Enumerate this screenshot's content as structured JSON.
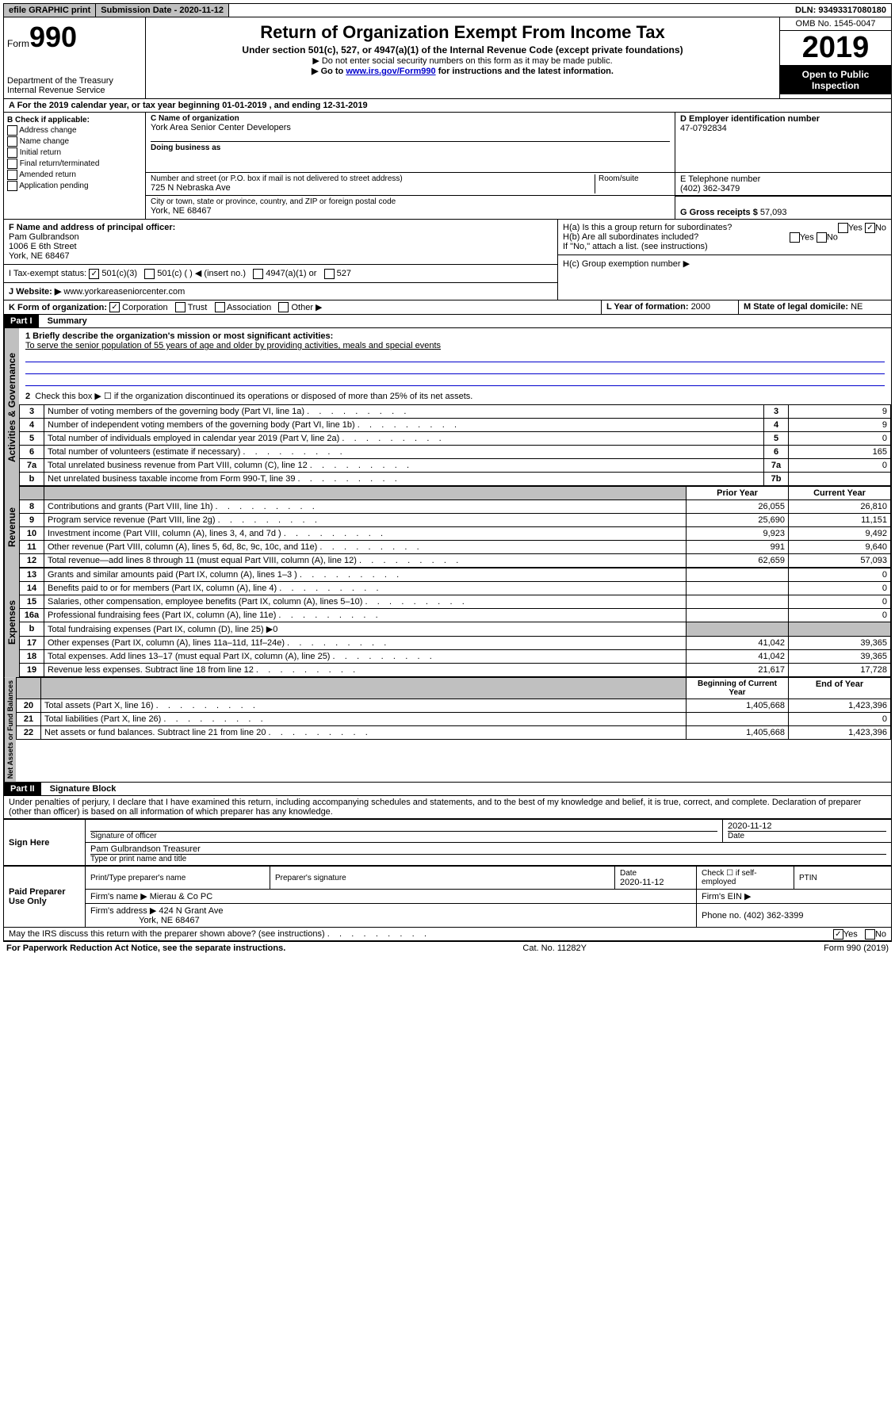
{
  "topbar": {
    "efile": "efile GRAPHIC print",
    "submission_label": "Submission Date - ",
    "submission_date": "2020-11-12",
    "dln_label": "DLN: ",
    "dln": "93493317080180"
  },
  "header": {
    "form_label": "Form",
    "form_number": "990",
    "dept": "Department of the Treasury\nInternal Revenue Service",
    "title": "Return of Organization Exempt From Income Tax",
    "subtitle": "Under section 501(c), 527, or 4947(a)(1) of the Internal Revenue Code (except private foundations)",
    "note1": "▶ Do not enter social security numbers on this form as it may be made public.",
    "note2_pre": "▶ Go to ",
    "note2_link": "www.irs.gov/Form990",
    "note2_post": " for instructions and the latest information.",
    "omb": "OMB No. 1545-0047",
    "year": "2019",
    "inspect": "Open to Public Inspection"
  },
  "rowA": "A For the 2019 calendar year, or tax year beginning 01-01-2019   , and ending 12-31-2019",
  "boxB": {
    "label": "B Check if applicable:",
    "items": [
      "Address change",
      "Name change",
      "Initial return",
      "Final return/terminated",
      "Amended return",
      "Application pending"
    ]
  },
  "boxC": {
    "name_label": "C Name of organization",
    "name": "York Area Senior Center Developers",
    "dba_label": "Doing business as",
    "dba": "",
    "street_label": "Number and street (or P.O. box if mail is not delivered to street address)",
    "room_label": "Room/suite",
    "street": "725 N Nebraska Ave",
    "city_label": "City or town, state or province, country, and ZIP or foreign postal code",
    "city": "York, NE  68467"
  },
  "boxD": {
    "label": "D Employer identification number",
    "value": "47-0792834"
  },
  "boxE": {
    "label": "E Telephone number",
    "value": "(402) 362-3479"
  },
  "boxG": {
    "label": "G Gross receipts $ ",
    "value": "57,093"
  },
  "boxF": {
    "label": "F  Name and address of principal officer:",
    "name": "Pam Gulbrandson",
    "addr1": "1006 E 6th Street",
    "addr2": "York, NE  68467"
  },
  "boxH": {
    "ha_label": "H(a)  Is this a group return for subordinates?",
    "ha_yes": "Yes",
    "ha_no": "No",
    "hb_label": "H(b)  Are all subordinates included?",
    "hb_yes": "Yes",
    "hb_no": "No",
    "hb_note": "If \"No,\" attach a list. (see instructions)",
    "hc_label": "H(c)  Group exemption number ▶"
  },
  "rowI": {
    "label": "I    Tax-exempt status:",
    "opts": [
      "501(c)(3)",
      "501(c) (  ) ◀ (insert no.)",
      "4947(a)(1) or",
      "527"
    ]
  },
  "rowJ": {
    "label": "J   Website: ▶  ",
    "value": "www.yorkareaseniorcenter.com"
  },
  "rowK": {
    "label": "K Form of organization:",
    "opts": [
      "Corporation",
      "Trust",
      "Association",
      "Other ▶"
    ]
  },
  "rowL": {
    "label": "L Year of formation: ",
    "value": "2000"
  },
  "rowM": {
    "label": "M State of legal domicile: ",
    "value": "NE"
  },
  "part1": {
    "header": "Part I",
    "title": "Summary",
    "q1_label": "1   Briefly describe the organization's mission or most significant activities:",
    "q1_text": "To serve the senior population of 55 years of age and older by providing activities, meals and special events",
    "q2": "Check this box ▶ ☐  if the organization discontinued its operations or disposed of more than 25% of its net assets.",
    "lines_gov": [
      {
        "n": "3",
        "text": "Number of voting members of the governing body (Part VI, line 1a)",
        "box": "3",
        "val": "9"
      },
      {
        "n": "4",
        "text": "Number of independent voting members of the governing body (Part VI, line 1b)",
        "box": "4",
        "val": "9"
      },
      {
        "n": "5",
        "text": "Total number of individuals employed in calendar year 2019 (Part V, line 2a)",
        "box": "5",
        "val": "0"
      },
      {
        "n": "6",
        "text": "Total number of volunteers (estimate if necessary)",
        "box": "6",
        "val": "165"
      },
      {
        "n": "7a",
        "text": "Total unrelated business revenue from Part VIII, column (C), line 12",
        "box": "7a",
        "val": "0"
      },
      {
        "n": "b",
        "text": "Net unrelated business taxable income from Form 990-T, line 39",
        "box": "7b",
        "val": ""
      }
    ],
    "col_prior": "Prior Year",
    "col_current": "Current Year",
    "lines_rev": [
      {
        "n": "8",
        "text": "Contributions and grants (Part VIII, line 1h)",
        "prior": "26,055",
        "curr": "26,810"
      },
      {
        "n": "9",
        "text": "Program service revenue (Part VIII, line 2g)",
        "prior": "25,690",
        "curr": "11,151"
      },
      {
        "n": "10",
        "text": "Investment income (Part VIII, column (A), lines 3, 4, and 7d )",
        "prior": "9,923",
        "curr": "9,492"
      },
      {
        "n": "11",
        "text": "Other revenue (Part VIII, column (A), lines 5, 6d, 8c, 9c, 10c, and 11e)",
        "prior": "991",
        "curr": "9,640"
      },
      {
        "n": "12",
        "text": "Total revenue—add lines 8 through 11 (must equal Part VIII, column (A), line 12)",
        "prior": "62,659",
        "curr": "57,093"
      }
    ],
    "lines_exp": [
      {
        "n": "13",
        "text": "Grants and similar amounts paid (Part IX, column (A), lines 1–3 )",
        "prior": "",
        "curr": "0"
      },
      {
        "n": "14",
        "text": "Benefits paid to or for members (Part IX, column (A), line 4)",
        "prior": "",
        "curr": "0"
      },
      {
        "n": "15",
        "text": "Salaries, other compensation, employee benefits (Part IX, column (A), lines 5–10)",
        "prior": "",
        "curr": "0"
      },
      {
        "n": "16a",
        "text": "Professional fundraising fees (Part IX, column (A), line 11e)",
        "prior": "",
        "curr": "0"
      },
      {
        "n": "b",
        "text": "Total fundraising expenses (Part IX, column (D), line 25) ▶0",
        "prior": "",
        "curr": "",
        "shaded": true
      },
      {
        "n": "17",
        "text": "Other expenses (Part IX, column (A), lines 11a–11d, 11f–24e)",
        "prior": "41,042",
        "curr": "39,365"
      },
      {
        "n": "18",
        "text": "Total expenses. Add lines 13–17 (must equal Part IX, column (A), line 25)",
        "prior": "41,042",
        "curr": "39,365"
      },
      {
        "n": "19",
        "text": "Revenue less expenses. Subtract line 18 from line 12",
        "prior": "21,617",
        "curr": "17,728"
      }
    ],
    "col_begin": "Beginning of Current Year",
    "col_end": "End of Year",
    "lines_net": [
      {
        "n": "20",
        "text": "Total assets (Part X, line 16)",
        "prior": "1,405,668",
        "curr": "1,423,396"
      },
      {
        "n": "21",
        "text": "Total liabilities (Part X, line 26)",
        "prior": "",
        "curr": "0"
      },
      {
        "n": "22",
        "text": "Net assets or fund balances. Subtract line 21 from line 20",
        "prior": "1,405,668",
        "curr": "1,423,396"
      }
    ],
    "tab_gov": "Activities & Governance",
    "tab_rev": "Revenue",
    "tab_exp": "Expenses",
    "tab_net": "Net Assets or Fund Balances"
  },
  "part2": {
    "header": "Part II",
    "title": "Signature Block",
    "decl": "Under penalties of perjury, I declare that I have examined this return, including accompanying schedules and statements, and to the best of my knowledge and belief, it is true, correct, and complete. Declaration of preparer (other than officer) is based on all information of which preparer has any knowledge.",
    "sign_here": "Sign Here",
    "sig_officer": "Signature of officer",
    "sig_date_label": "Date",
    "sig_date": "2020-11-12",
    "sig_name": "Pam Gulbrandson  Treasurer",
    "sig_name_label": "Type or print name and title",
    "paid": "Paid Preparer Use Only",
    "prep_name_label": "Print/Type preparer's name",
    "prep_sig_label": "Preparer's signature",
    "prep_date_label": "Date",
    "prep_date": "2020-11-12",
    "prep_check": "Check ☐ if self-employed",
    "prep_ptin": "PTIN",
    "firm_name_label": "Firm's name    ▶ ",
    "firm_name": "Mierau & Co PC",
    "firm_ein": "Firm's EIN ▶",
    "firm_addr_label": "Firm's address ▶ ",
    "firm_addr1": "424 N Grant Ave",
    "firm_addr2": "York, NE  68467",
    "firm_phone_label": "Phone no. ",
    "firm_phone": "(402) 362-3399",
    "discuss": "May the IRS discuss this return with the preparer shown above? (see instructions)",
    "discuss_yes": "Yes",
    "discuss_no": "No"
  },
  "footer": {
    "left": "For Paperwork Reduction Act Notice, see the separate instructions.",
    "mid": "Cat. No. 11282Y",
    "right": "Form 990 (2019)"
  }
}
